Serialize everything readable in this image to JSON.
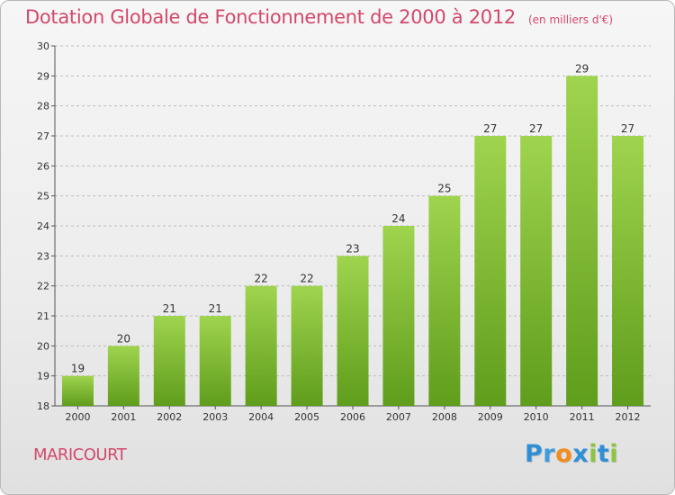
{
  "header": {
    "title": "Dotation Globale de Fonctionnement de 2000 à 2012",
    "subtitle": "(en milliers d'€)"
  },
  "commune": "MARICOURT",
  "logo": {
    "text": "Proxiti",
    "letters": [
      {
        "ch": "P",
        "color": "#2f8fd6"
      },
      {
        "ch": "r",
        "color": "#3d9be0"
      },
      {
        "ch": "o",
        "color": "#f28c1e"
      },
      {
        "ch": "x",
        "color": "#2f8fd6"
      },
      {
        "ch": "i",
        "color": "#8cc63f"
      },
      {
        "ch": "t",
        "color": "#2f8fd6"
      },
      {
        "ch": "i",
        "color": "#8cc63f"
      }
    ]
  },
  "colors": {
    "title": "#d2496b",
    "bar_light": "#9fd44e",
    "bar_dark": "#5f9d1c",
    "grid": "#bdbdbd",
    "text": "#333333"
  },
  "chart_data": {
    "type": "bar",
    "categories": [
      "2000",
      "2001",
      "2002",
      "2003",
      "2004",
      "2005",
      "2006",
      "2007",
      "2008",
      "2009",
      "2010",
      "2011",
      "2012"
    ],
    "values": [
      19,
      20,
      21,
      21,
      22,
      22,
      23,
      24,
      25,
      27,
      27,
      29,
      27
    ],
    "ylim": [
      18,
      30
    ],
    "yticks": [
      18,
      19,
      20,
      21,
      22,
      23,
      24,
      25,
      26,
      27,
      28,
      29,
      30
    ],
    "grid": true,
    "xlabel": "",
    "ylabel": ""
  }
}
